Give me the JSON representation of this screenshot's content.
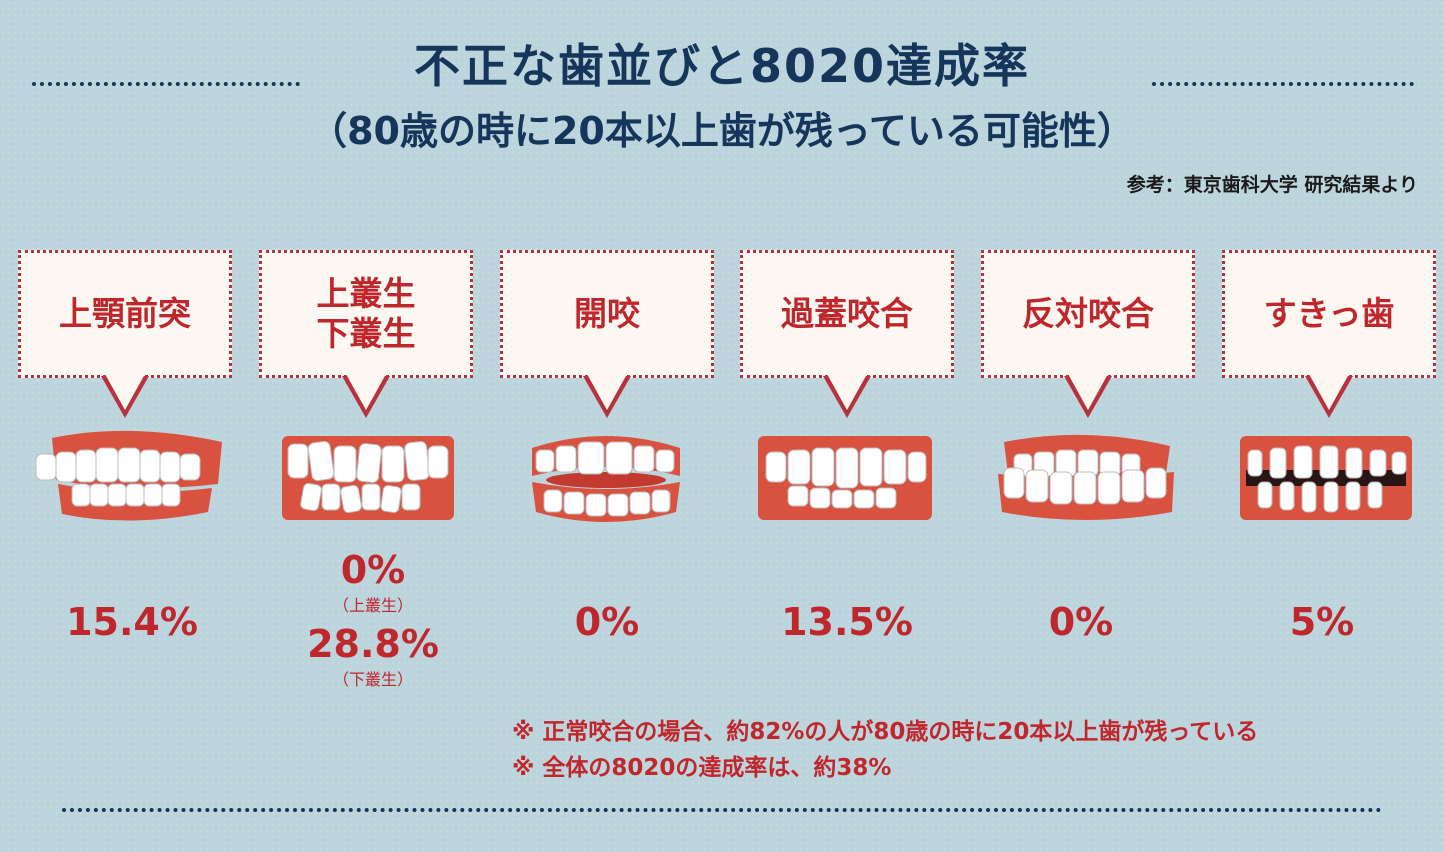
{
  "header": {
    "title": "不正な歯並びと8020達成率",
    "subtitle": "（80歳の時に20本以上歯が残っている可能性）",
    "source": "参考：東京歯科大学 研究結果より"
  },
  "chart_data": {
    "type": "table",
    "categories": [
      "上顎前突",
      "上叢生下叢生",
      "開咬",
      "過蓋咬合",
      "反対咬合",
      "すきっ歯"
    ],
    "items": [
      {
        "label_lines": [
          "上顎前突"
        ],
        "values": [
          {
            "value": "15.4%",
            "note": ""
          }
        ]
      },
      {
        "label_lines": [
          "上叢生",
          "下叢生"
        ],
        "values": [
          {
            "value": "0%",
            "note": "（上叢生）"
          },
          {
            "value": "28.8%",
            "note": "（下叢生）"
          }
        ]
      },
      {
        "label_lines": [
          "開咬"
        ],
        "values": [
          {
            "value": "0%",
            "note": ""
          }
        ]
      },
      {
        "label_lines": [
          "過蓋咬合"
        ],
        "values": [
          {
            "value": "13.5%",
            "note": ""
          }
        ]
      },
      {
        "label_lines": [
          "反対咬合"
        ],
        "values": [
          {
            "value": "0%",
            "note": ""
          }
        ]
      },
      {
        "label_lines": [
          "すきっ歯"
        ],
        "values": [
          {
            "value": "5%",
            "note": ""
          }
        ]
      }
    ],
    "numeric_values": [
      15.4,
      0,
      28.8,
      0,
      13.5,
      0,
      5
    ],
    "notes": [
      "※ 正常咬合の場合、約82%の人が80歳の時に20本以上歯が残っている",
      "※ 全体の8020の達成率は、約38%"
    ]
  },
  "colors": {
    "accent": "#c0272d",
    "title": "#15355a",
    "background": "#bcd4dc"
  }
}
